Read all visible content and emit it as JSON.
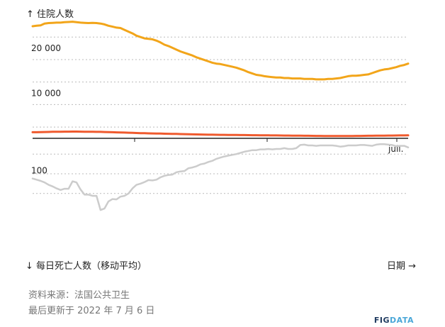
{
  "labels": {
    "top_axis": "↑ 住院人数",
    "bottom_axis": "↓ 每日死亡人数（移动平均）",
    "x_axis": "日期 →"
  },
  "footer": {
    "source": "资料来源：法国公共卫生",
    "updated": "最后更新于 2022 年 7 月 6 日"
  },
  "brand": {
    "part1": "FIG",
    "part2": "DATA"
  },
  "colors": {
    "hospitalized": "#f2a51a",
    "icu": "#ef5a2e",
    "deaths": "#cccccc",
    "grid": "#bbbbbb",
    "axis": "#222222"
  },
  "chart_data": {
    "type": "line",
    "x_tick_labels": [
      "juil."
    ],
    "top_panel": {
      "ylim": [
        0,
        26000
      ],
      "y_tick_labels": [
        "10 000",
        "20 000"
      ],
      "series": [
        {
          "key": "hospitalized",
          "values": [
            24900,
            25000,
            25100,
            25500,
            25600,
            25650,
            25700,
            25700,
            25800,
            25850,
            25900,
            25800,
            25700,
            25650,
            25600,
            25650,
            25600,
            25500,
            25300,
            25000,
            24800,
            24600,
            24500,
            24100,
            23700,
            23300,
            22800,
            22500,
            22200,
            22100,
            22000,
            21700,
            21300,
            20800,
            20500,
            20100,
            19700,
            19300,
            19000,
            18700,
            18400,
            18000,
            17700,
            17400,
            17100,
            16800,
            16600,
            16500,
            16300,
            16100,
            15900,
            15700,
            15400,
            15100,
            14700,
            14400,
            14100,
            14000,
            13800,
            13700,
            13600,
            13500,
            13500,
            13400,
            13400,
            13300,
            13300,
            13300,
            13200,
            13200,
            13200,
            13100,
            13100,
            13100,
            13200,
            13200,
            13300,
            13400,
            13600,
            13800,
            13900,
            13900,
            14000,
            14100,
            14200,
            14500,
            14800,
            15100,
            15300,
            15400,
            15600,
            15800,
            16100,
            16300,
            16600
          ]
        },
        {
          "key": "icu",
          "values": [
            1350,
            1360,
            1380,
            1400,
            1420,
            1450,
            1460,
            1470,
            1480,
            1480,
            1490,
            1490,
            1480,
            1470,
            1460,
            1450,
            1440,
            1430,
            1410,
            1380,
            1360,
            1330,
            1300,
            1270,
            1240,
            1210,
            1180,
            1150,
            1130,
            1110,
            1090,
            1070,
            1050,
            1030,
            1010,
            990,
            970,
            950,
            930,
            910,
            890,
            870,
            850,
            830,
            810,
            800,
            790,
            780,
            770,
            760,
            750,
            740,
            730,
            720,
            710,
            700,
            690,
            680,
            670,
            660,
            650,
            640,
            630,
            620,
            610,
            600,
            590,
            580,
            570,
            560,
            550,
            540,
            530,
            520,
            520,
            520,
            520,
            520,
            520,
            520,
            520,
            530,
            540,
            550,
            560,
            570,
            580,
            590,
            600,
            610,
            620,
            630,
            640,
            650,
            660
          ]
        }
      ]
    },
    "bottom_panel": {
      "ylim": [
        0,
        270
      ],
      "inverted": true,
      "y_tick_labels": [
        "100"
      ],
      "series": [
        {
          "key": "deaths",
          "values": [
            102,
            105,
            108,
            112,
            118,
            122,
            127,
            131,
            128,
            128,
            109,
            112,
            130,
            143,
            143,
            146,
            146,
            182,
            178,
            160,
            154,
            155,
            148,
            146,
            140,
            127,
            118,
            115,
            111,
            106,
            107,
            105,
            99,
            95,
            93,
            92,
            86,
            84,
            83,
            76,
            74,
            71,
            66,
            64,
            60,
            57,
            52,
            49,
            46,
            44,
            42,
            40,
            37,
            34,
            32,
            30,
            30,
            28,
            28,
            27,
            28,
            27,
            27,
            25,
            27,
            27,
            25,
            17,
            16,
            18,
            18,
            19,
            18,
            18,
            18,
            18,
            19,
            21,
            20,
            18,
            18,
            18,
            17,
            17,
            18,
            19,
            16,
            15,
            15,
            16,
            17,
            20,
            19,
            19,
            23
          ]
        }
      ]
    }
  }
}
